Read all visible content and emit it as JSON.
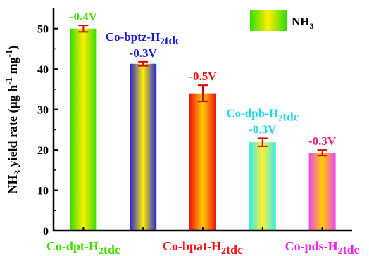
{
  "chart_data": {
    "type": "bar",
    "ylabel": "NH3 yield rate (μg h⁻¹ mg⁻¹)",
    "ylim": [
      0,
      55
    ],
    "yticks": [
      0,
      10,
      20,
      30,
      40,
      50
    ],
    "legend": {
      "label": "NH3",
      "placement": "top-right"
    },
    "grid": false,
    "bars": [
      {
        "name": "Co-dpt-H2tdc",
        "value": 50.0,
        "error": 0.8,
        "potential": "-0.4V",
        "colors": [
          "#33dd00",
          "#ffee00",
          "#33dd00"
        ],
        "label_color": "#44dd00",
        "axis_label": "Co-dpt-H2tdc",
        "annotation": "",
        "annotation_color": ""
      },
      {
        "name": "Co-bptz-H2tdc",
        "value": 41.3,
        "error": 0.5,
        "potential": "-0.3V",
        "colors": [
          "#2222dd",
          "#ffee00",
          "#2222dd"
        ],
        "label_color": "#1a1ad6",
        "axis_label": "",
        "annotation": "Co-bptz-H2tdc",
        "annotation_color": "#1a1ad6"
      },
      {
        "name": "Co-bpat-H2tdc",
        "value": 34.0,
        "error": 2.0,
        "potential": "-0.5V",
        "colors": [
          "#ee1111",
          "#ffcc00",
          "#ee1111"
        ],
        "label_color": "#ee1111",
        "axis_label": "Co-bpat-H2tdc",
        "annotation": "",
        "annotation_color": ""
      },
      {
        "name": "Co-dpb-H2tdc",
        "value": 21.9,
        "error": 1.0,
        "potential": "-0.3V",
        "colors": [
          "#33eeee",
          "#ffee33",
          "#33eeee"
        ],
        "label_color": "#22d6e6",
        "axis_label": "",
        "annotation": "Co-dpb-H2tdc",
        "annotation_color": "#22d6e6"
      },
      {
        "name": "Co-pds-H2tdc",
        "value": 19.3,
        "error": 0.7,
        "potential": "-0.3V",
        "colors": [
          "#ee44ee",
          "#ffcc00",
          "#ee44ee"
        ],
        "label_color": "#ee2277",
        "axis_label": "Co-pds-H2tdc",
        "annotation": "",
        "annotation_color": ""
      }
    ],
    "axis_label_colors": {
      "Co-dpt-H2tdc": "#44dd00",
      "Co-bpat-H2tdc": "#ee1111",
      "Co-pds-H2tdc": "#ee22ee"
    }
  }
}
